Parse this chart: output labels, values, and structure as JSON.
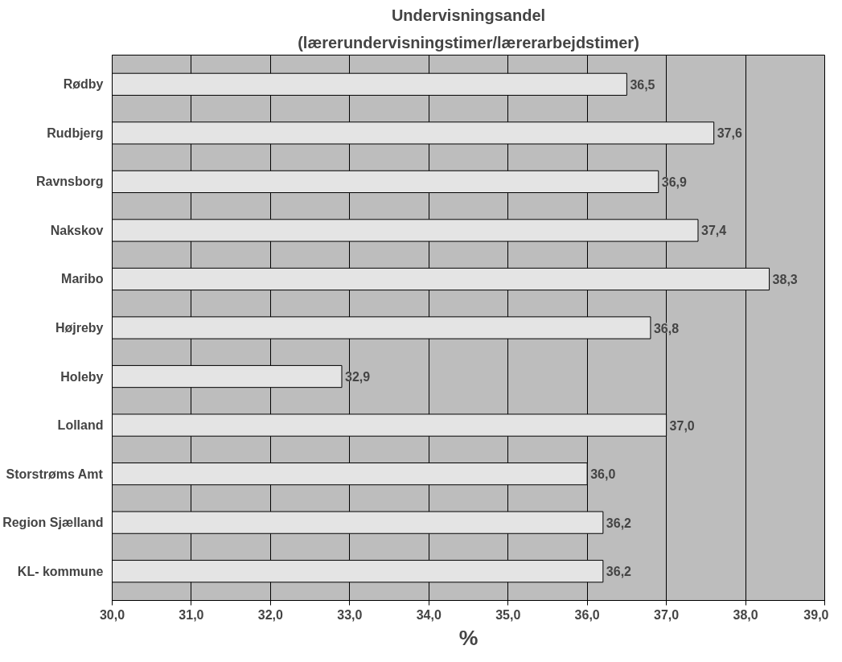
{
  "chart_data": {
    "type": "bar",
    "orientation": "horizontal",
    "title": "Undervisningsandel",
    "subtitle": "(lærerundervisningstimer/lærerarbejdstimer)",
    "xlabel": "%",
    "categories": [
      "Rødby",
      "Rudbjerg",
      "Ravnsborg",
      "Nakskov",
      "Maribo",
      "Højreby",
      "Holeby",
      "Lolland",
      "Storstrøms Amt",
      "Region Sjælland",
      "KL- kommune"
    ],
    "values": [
      36.5,
      37.6,
      36.9,
      37.4,
      38.3,
      36.8,
      32.9,
      37.0,
      36.0,
      36.2,
      36.2
    ],
    "value_labels": [
      "36,5",
      "37,6",
      "36,9",
      "37,4",
      "38,3",
      "36,8",
      "32,9",
      "37,0",
      "36,0",
      "36,2",
      "36,2"
    ],
    "color": "#e4e4e4",
    "xlim": [
      30,
      39
    ],
    "xticks": [
      {
        "value": 30,
        "label": "30,0"
      },
      {
        "value": 31,
        "label": "31,0"
      },
      {
        "value": 32,
        "label": "32,0"
      },
      {
        "value": 33,
        "label": "33,0"
      },
      {
        "value": 34,
        "label": "34,0"
      },
      {
        "value": 35,
        "label": "35,0"
      },
      {
        "value": 36,
        "label": "36,0"
      },
      {
        "value": 37,
        "label": "37,0"
      },
      {
        "value": 38,
        "label": "38,0"
      },
      {
        "value": 39,
        "label": "39,0"
      }
    ],
    "grid": "x"
  }
}
